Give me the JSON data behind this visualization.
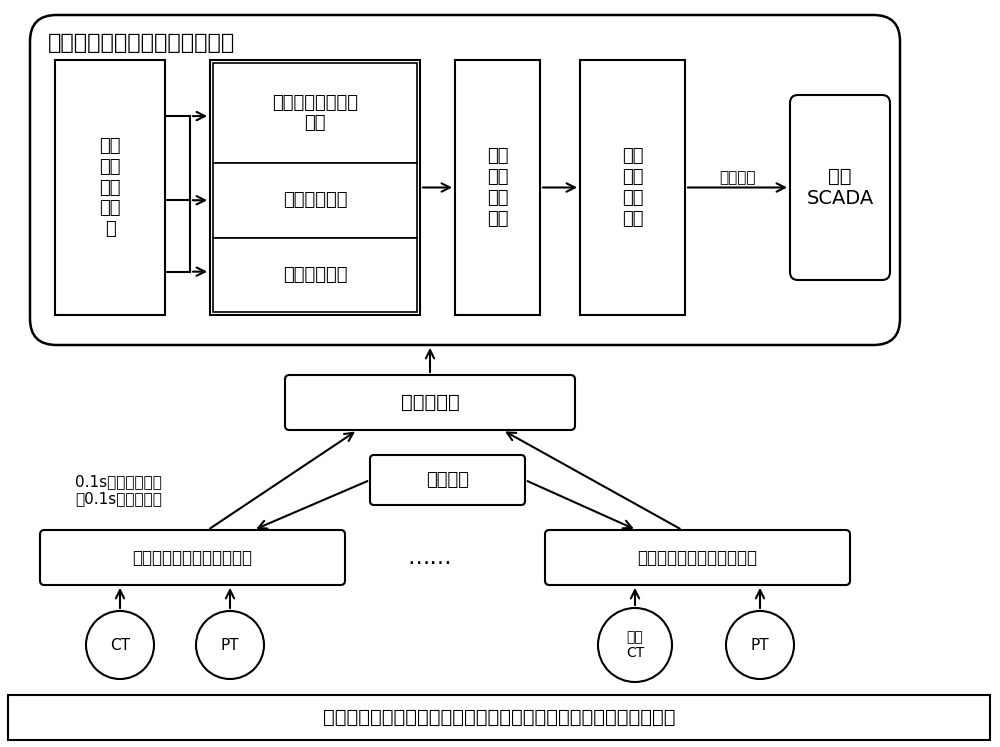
{
  "title": "供电设备隐性故障监测站域主站",
  "bg_color": "#ffffff",
  "bottom_bar_text": "开关柜、馈线、变压器、变频器、电容器等供电设备构成的虚拟节点",
  "multi_period_text": "多周\n期同\n步损\n耗计\n算",
  "compare1_text": "同类虚拟节点损耗\n比较",
  "compare2_text": "历史损耗比较",
  "compare3_text": "虚拟电阻比较",
  "abnormal_node_text": "异常\n虚拟\n节点\n识别",
  "abnormal_equip_text": "异常\n供电\n设备\n识别",
  "scada_text": "电网\nSCADA",
  "network_switch_text": "网络交换机",
  "time_device_text": "对时装置",
  "measure_text": "真有效值电能同步测量装置",
  "ct_text": "CT",
  "pt_text": "PT",
  "ect_text": "电子\nCT",
  "annotation_text": "0.1s真有效值电能\n以0.1s为周期上送",
  "dots_text": "……",
  "alarm_text": "告警信息"
}
